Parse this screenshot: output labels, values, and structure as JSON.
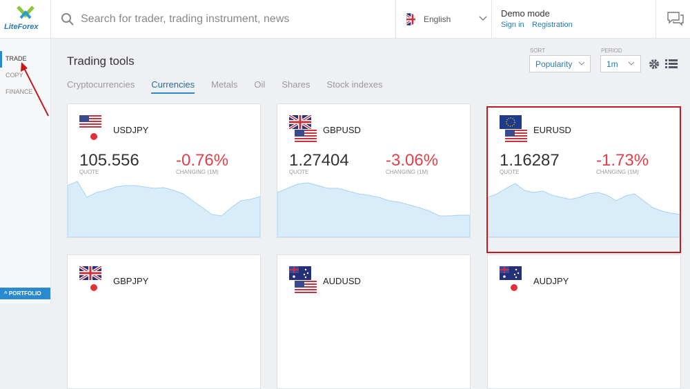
{
  "header": {
    "logo": "LiteForex",
    "search_placeholder": "Search for trader, trading instrument, news",
    "language": "English",
    "account_status": "Demo mode",
    "sign_in": "Sign in",
    "registration": "Registration"
  },
  "sidebar": {
    "items": [
      "TRADE",
      "COPY",
      "FINANCE"
    ],
    "active_item": 0,
    "portfolio": "PORTFOLIO"
  },
  "page": {
    "title": "Trading tools",
    "sort_label": "SORT",
    "sort_value": "Popularity",
    "period_label": "PERIOD",
    "period_value": "1m",
    "tabs": [
      "Cryptocurrencies",
      "Currencies",
      "Metals",
      "Oil",
      "Shares",
      "Stock indexes"
    ],
    "active_tab": 1
  },
  "cards": [
    {
      "symbol": "USDJPY",
      "quote": "105.556",
      "quote_label": "QUOTE",
      "change": "-0.76%",
      "change_label": "CHANGING (1M)",
      "sparkline": [
        75,
        81,
        58,
        65,
        68,
        73,
        75,
        75,
        73,
        71,
        72,
        68,
        63,
        53,
        43,
        33,
        31,
        43,
        53,
        55,
        59
      ]
    },
    {
      "symbol": "GBPUSD",
      "quote": "1.27404",
      "quote_label": "QUOTE",
      "change": "-3.06%",
      "change_label": "CHANGING (1M)",
      "sparkline": [
        65,
        71,
        77,
        79,
        75,
        71,
        71,
        67,
        63,
        61,
        58,
        53,
        51,
        47,
        43,
        38,
        31,
        31,
        32,
        32
      ]
    },
    {
      "symbol": "EURUSD",
      "quote": "1.16287",
      "quote_label": "QUOTE",
      "change": "-1.73%",
      "change_label": "CHANGING (1M)",
      "sparkline": [
        58,
        63,
        71,
        78,
        68,
        65,
        67,
        61,
        58,
        55,
        58,
        63,
        65,
        61,
        53,
        60,
        63,
        53,
        43,
        38,
        35,
        33
      ]
    },
    {
      "symbol": "GBPJPY"
    },
    {
      "symbol": "AUDUSD"
    },
    {
      "symbol": "AUDJPY"
    }
  ]
}
